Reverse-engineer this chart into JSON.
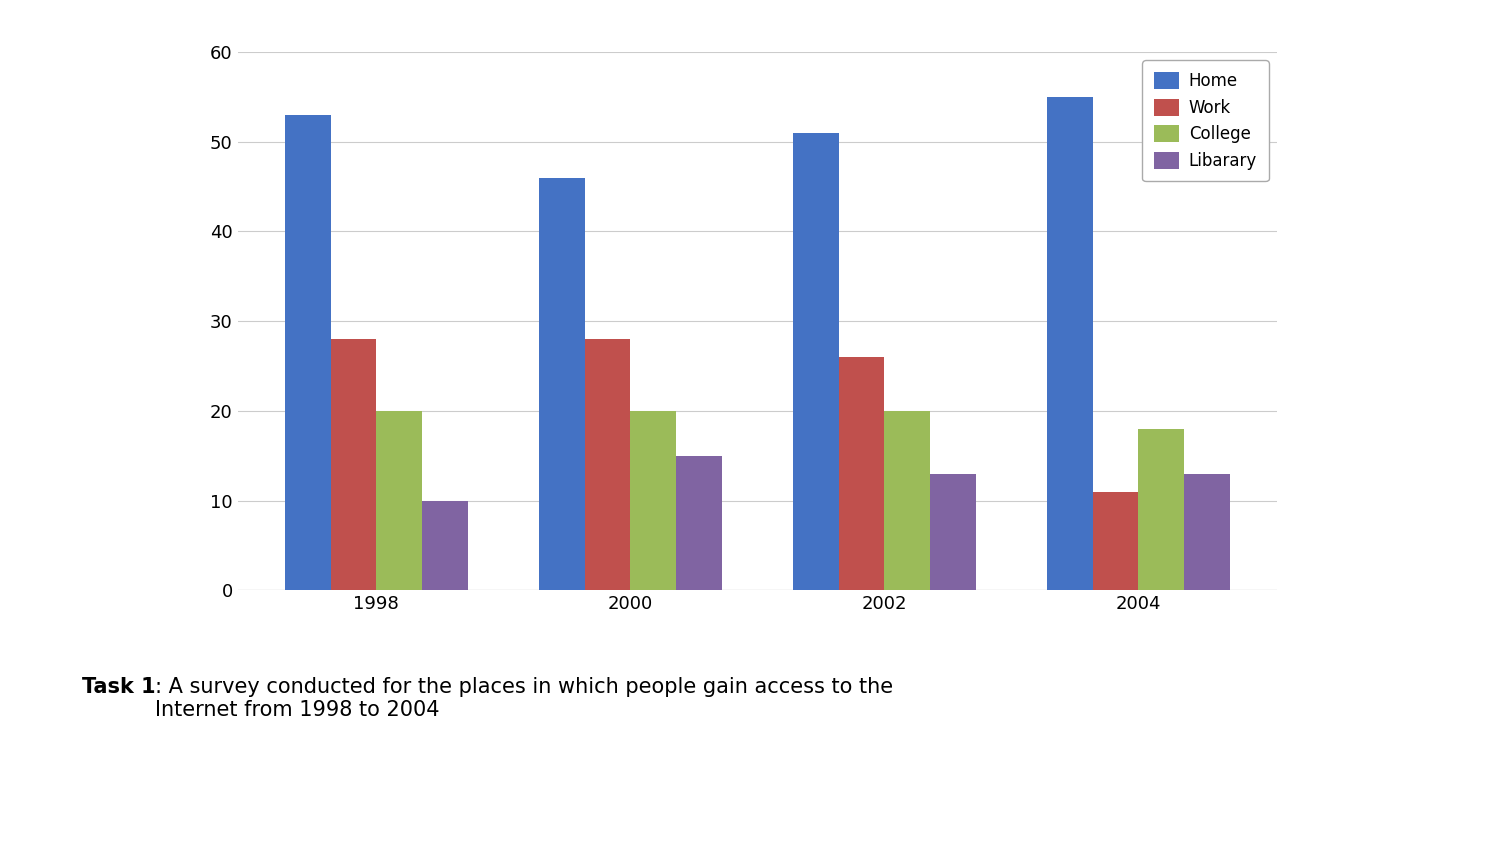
{
  "categories": [
    "1998",
    "2000",
    "2002",
    "2004"
  ],
  "series": {
    "Home": [
      53,
      46,
      51,
      55
    ],
    "Work": [
      28,
      28,
      26,
      11
    ],
    "College": [
      20,
      20,
      20,
      18
    ],
    "Libarary": [
      10,
      15,
      13,
      13
    ]
  },
  "colors": {
    "Home": "#4472C4",
    "Work": "#C0504D",
    "College": "#9BBB59",
    "Libarary": "#8064A2"
  },
  "ylim": [
    0,
    60
  ],
  "yticks": [
    0,
    10,
    20,
    30,
    40,
    50,
    60
  ],
  "bar_width": 0.18,
  "grid_color": "#CCCCCC",
  "background_color": "#FFFFFF",
  "caption_bold": "Task 1",
  "caption_normal": ": A survey conducted for the places in which people gain access to the\nInternet from 1998 to 2004",
  "caption_fontsize": 15,
  "tick_fontsize": 13,
  "legend_fontsize": 12
}
